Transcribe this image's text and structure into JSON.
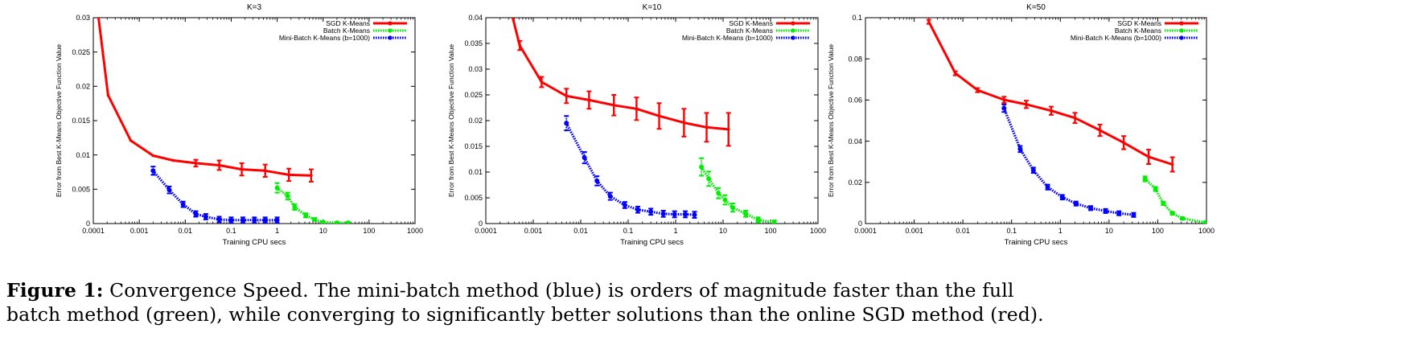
{
  "chart_data": [
    {
      "type": "line",
      "title": "K=3",
      "xlabel": "Training CPU secs",
      "ylabel": "Error from Best K-Means Objective Function Value",
      "xscale": "log",
      "xlim": [
        0.0001,
        1000
      ],
      "ylim": [
        0,
        0.03
      ],
      "xticks": [
        "0.0001",
        "0.001",
        "0.01",
        "0.1",
        "1",
        "10",
        "100",
        "1000"
      ],
      "yticks": [
        "0",
        "0.005",
        "0.01",
        "0.015",
        "0.02",
        "0.025",
        "0.03"
      ],
      "legend_position": "top-right",
      "series": [
        {
          "name": "SGD K-Means",
          "color": "#ff0000",
          "style": "solid",
          "x": [
            0.00013,
            0.00021,
            0.00065,
            0.002,
            0.0055,
            0.017,
            0.055,
            0.17,
            0.55,
            1.8,
            5.5
          ],
          "y": [
            0.03,
            0.0187,
            0.0121,
            0.0099,
            0.0092,
            0.0088,
            0.0085,
            0.0079,
            0.0077,
            0.0071,
            0.007
          ],
          "err": [
            0,
            0,
            0,
            0,
            0,
            0.0005,
            0.0007,
            0.0009,
            0.0009,
            0.0009,
            0.0009
          ]
        },
        {
          "name": "Batch K-Means",
          "color": "#00ee00",
          "style": "dotted",
          "x": [
            1,
            1.7,
            2.4,
            4.2,
            6.5,
            10,
            20,
            35
          ],
          "y": [
            0.0052,
            0.004,
            0.0024,
            0.0012,
            0.0006,
            0.0002,
            0.0001,
            0.0001
          ],
          "err": [
            0.0007,
            0.0005,
            0.0004,
            0.0003,
            0.0002,
            0.0001,
            0.0001,
            0.0001
          ]
        },
        {
          "name": "Mini-Batch K-Means (b=1000)",
          "color": "#0000ff",
          "style": "dotted",
          "x": [
            0.002,
            0.0045,
            0.009,
            0.017,
            0.028,
            0.055,
            0.1,
            0.18,
            0.32,
            0.55,
            1
          ],
          "y": [
            0.0077,
            0.0049,
            0.0028,
            0.0014,
            0.001,
            0.0006,
            0.0005,
            0.0005,
            0.0005,
            0.0005,
            0.0005
          ],
          "err": [
            0.0006,
            0.0005,
            0.0004,
            0.0004,
            0.0004,
            0.0004,
            0.0004,
            0.0004,
            0.0004,
            0.0004,
            0.0004
          ]
        }
      ]
    },
    {
      "type": "line",
      "title": "K=10",
      "xlabel": "Training CPU secs",
      "ylabel": "Error from Best K-Means Objective Function Value",
      "xscale": "log",
      "xlim": [
        0.0001,
        1000
      ],
      "ylim": [
        0,
        0.04
      ],
      "xticks": [
        "0.0001",
        "0.001",
        "0.01",
        "0.1",
        "1",
        "10",
        "100",
        "1000"
      ],
      "yticks": [
        "0",
        "0.005",
        "0.01",
        "0.015",
        "0.02",
        "0.025",
        "0.03",
        "0.035",
        "0.04"
      ],
      "legend_position": "top-right",
      "series": [
        {
          "name": "SGD K-Means",
          "color": "#ff0000",
          "style": "solid",
          "x": [
            0.00037,
            0.00052,
            0.0015,
            0.005,
            0.015,
            0.05,
            0.15,
            0.45,
            1.5,
            4.5,
            13
          ],
          "y": [
            0.04,
            0.0346,
            0.0275,
            0.0248,
            0.024,
            0.023,
            0.0223,
            0.0209,
            0.0196,
            0.0187,
            0.0183
          ],
          "err": [
            0,
            0.0009,
            0.001,
            0.0014,
            0.0017,
            0.002,
            0.0022,
            0.0025,
            0.0027,
            0.0028,
            0.0032
          ]
        },
        {
          "name": "Batch K-Means",
          "color": "#00ee00",
          "style": "dotted",
          "x": [
            3.5,
            5,
            8,
            11,
            16,
            30,
            55,
            120
          ],
          "y": [
            0.011,
            0.0087,
            0.0059,
            0.0046,
            0.0031,
            0.0019,
            0.0007,
            0.0002
          ],
          "err": [
            0.0017,
            0.0014,
            0.001,
            0.0009,
            0.0008,
            0.0006,
            0.0005,
            0.0004
          ]
        },
        {
          "name": "Mini-Batch K-Means (b=1000)",
          "color": "#0000ff",
          "style": "dotted",
          "x": [
            0.005,
            0.012,
            0.022,
            0.042,
            0.085,
            0.16,
            0.3,
            0.55,
            0.95,
            1.6,
            2.5
          ],
          "y": [
            0.0195,
            0.0128,
            0.0083,
            0.0053,
            0.0036,
            0.0027,
            0.0023,
            0.0019,
            0.0018,
            0.0018,
            0.0017
          ],
          "err": [
            0.0014,
            0.0011,
            0.0009,
            0.0007,
            0.0006,
            0.0006,
            0.0006,
            0.0006,
            0.0006,
            0.0006,
            0.0006
          ]
        }
      ]
    },
    {
      "type": "line",
      "title": "K=50",
      "xlabel": "Training CPU secs",
      "ylabel": "Error from Best K-Means Objective Function Value",
      "xscale": "log",
      "xlim": [
        0.0001,
        1000
      ],
      "ylim": [
        0,
        0.1
      ],
      "xticks": [
        "0.0001",
        "0.001",
        "0.01",
        "0.1",
        "1",
        "10",
        "100",
        "1000"
      ],
      "yticks": [
        "0",
        "0.02",
        "0.04",
        "0.06",
        "0.08",
        "0.1"
      ],
      "legend_position": "top-right",
      "series": [
        {
          "name": "SGD K-Means",
          "color": "#ff0000",
          "style": "solid",
          "x": [
            0.002,
            0.007,
            0.02,
            0.07,
            0.2,
            0.65,
            2,
            6.5,
            20,
            65,
            200
          ],
          "y": [
            0.098,
            0.073,
            0.0648,
            0.0601,
            0.0579,
            0.0548,
            0.0513,
            0.0453,
            0.0393,
            0.0324,
            0.0287
          ],
          "err": [
            0.001,
            0.001,
            0.001,
            0.0015,
            0.0018,
            0.002,
            0.0025,
            0.0028,
            0.0032,
            0.0035,
            0.0035
          ]
        },
        {
          "name": "Batch K-Means",
          "color": "#00ee00",
          "style": "dotted",
          "x": [
            55,
            90,
            130,
            200,
            320,
            950
          ],
          "y": [
            0.0217,
            0.0168,
            0.0098,
            0.005,
            0.0025,
            0.0005
          ],
          "err": [
            0.0012,
            0.001,
            0.0008,
            0.0007,
            0.0005,
            0.0004
          ]
        },
        {
          "name": "Mini-Batch K-Means (b=1000)",
          "color": "#0000ff",
          "style": "dotted",
          "x": [
            0.07,
            0.15,
            0.28,
            0.55,
            1.1,
            2.1,
            4.2,
            8.5,
            16,
            32
          ],
          "y": [
            0.056,
            0.0362,
            0.0259,
            0.0177,
            0.0128,
            0.0097,
            0.0075,
            0.0061,
            0.005,
            0.0042
          ],
          "err": [
            0.0018,
            0.0015,
            0.0013,
            0.0012,
            0.0011,
            0.001,
            0.001,
            0.001,
            0.001,
            0.001
          ]
        }
      ]
    }
  ],
  "caption": {
    "label": "Figure 1:",
    "line1": " Convergence Speed.  The mini-batch method (blue) is orders of magnitude faster than the full",
    "line2": "batch method (green), while converging to significantly better solutions than the online SGD method (red)."
  }
}
